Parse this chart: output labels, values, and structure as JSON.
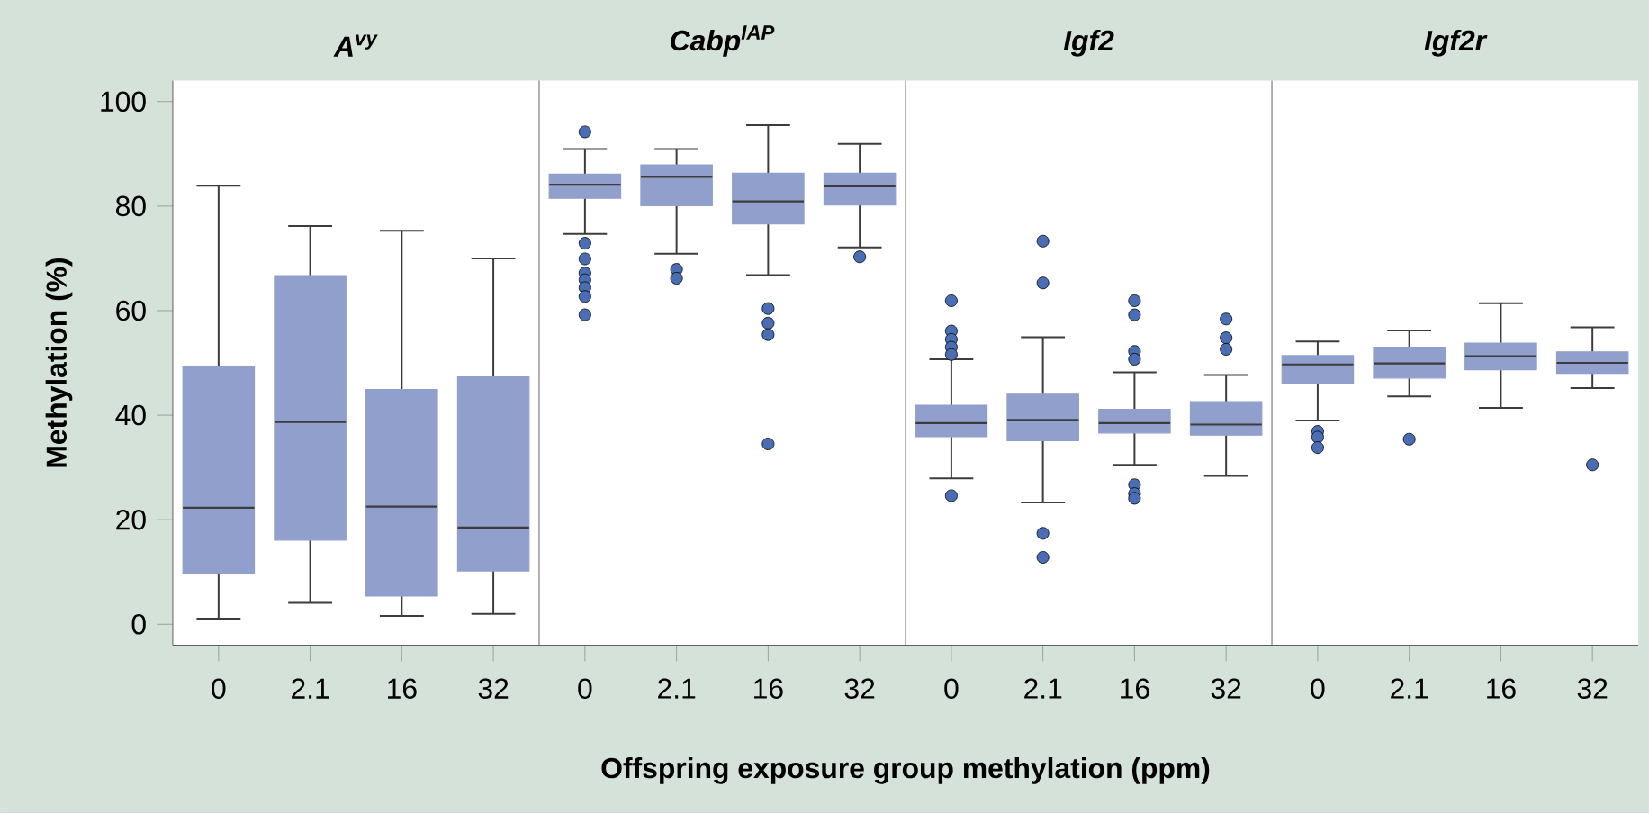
{
  "chart_data": [
    {
      "type": "box",
      "title": "A$^{vy}$",
      "categories": [
        "0",
        "2.1",
        "16",
        "32"
      ],
      "ylim": [
        -4,
        104
      ],
      "yticks": [
        0,
        20,
        40,
        60,
        80,
        100
      ],
      "ylabel": "Methylation (%)",
      "xlabel": "Offspring exposure group methylation (ppm)",
      "series": [
        {
          "color": "#909fcc",
          "boxes": [
            {
              "low": 1.1,
              "q1": 9.7,
              "median": 22.3,
              "q3": 49.4,
              "high": 83.9
            },
            {
              "low": 4.1,
              "q1": 16.1,
              "median": 38.7,
              "q3": 66.7,
              "high": 76.2
            },
            {
              "low": 1.6,
              "q1": 5.4,
              "median": 22.5,
              "q3": 44.9,
              "high": 75.3
            },
            {
              "low": 2.0,
              "q1": 10.2,
              "median": 18.5,
              "q3": 47.3,
              "high": 70.0
            }
          ]
        }
      ]
    },
    {
      "type": "box",
      "title": "Cabp$^{IAP}$",
      "categories": [
        "0",
        "2.1",
        "16",
        "32"
      ],
      "ylim": [
        -4,
        104
      ],
      "tick_labels": "x",
      "series": [
        {
          "color": "#909fcc",
          "boxes": [
            {
              "low": 74.7,
              "q1": 81.5,
              "median": 84.1,
              "q3": 86.1,
              "high": 90.9,
              "outliers": [
                94.2,
                72.9,
                69.9,
                67.2,
                65.9,
                64.4,
                62.7,
                59.2
              ]
            },
            {
              "low": 70.9,
              "q1": 80.1,
              "median": 85.6,
              "q3": 87.9,
              "high": 90.9,
              "outliers": [
                67.9,
                66.2
              ]
            },
            {
              "low": 66.8,
              "q1": 76.6,
              "median": 80.9,
              "q3": 86.3,
              "high": 95.5,
              "outliers": [
                60.4,
                57.6,
                55.4,
                34.5
              ]
            },
            {
              "low": 72.1,
              "q1": 80.2,
              "median": 83.8,
              "q3": 86.3,
              "high": 91.9,
              "outliers": [
                70.3
              ]
            }
          ]
        }
      ]
    },
    {
      "type": "box",
      "title": "Igf2",
      "categories": [
        "0",
        "2.1",
        "16",
        "32"
      ],
      "ylim": [
        -4,
        104
      ],
      "tick_labels": "x",
      "series": [
        {
          "color": "#909fcc",
          "boxes": [
            {
              "low": 27.9,
              "q1": 35.9,
              "median": 38.5,
              "q3": 41.9,
              "high": 50.7,
              "outliers": [
                61.9,
                56.1,
                54.5,
                53.0,
                51.6,
                24.6
              ]
            },
            {
              "low": 23.3,
              "q1": 35.1,
              "median": 39.1,
              "q3": 44.0,
              "high": 54.9,
              "outliers": [
                73.3,
                65.3,
                17.4,
                12.8
              ]
            },
            {
              "low": 30.5,
              "q1": 36.6,
              "median": 38.5,
              "q3": 41.1,
              "high": 48.2,
              "outliers": [
                61.9,
                59.2,
                52.2,
                50.7,
                26.7,
                25.0,
                24.1
              ]
            },
            {
              "low": 28.4,
              "q1": 36.2,
              "median": 38.2,
              "q3": 42.6,
              "high": 47.7,
              "outliers": [
                58.4,
                54.8,
                52.6
              ]
            }
          ]
        }
      ]
    },
    {
      "type": "box",
      "title": "Igf2r",
      "categories": [
        "0",
        "2.1",
        "16",
        "32"
      ],
      "ylim": [
        -4,
        104
      ],
      "tick_labels": "x",
      "series": [
        {
          "color": "#909fcc",
          "boxes": [
            {
              "low": 39.0,
              "q1": 46.1,
              "median": 49.7,
              "q3": 51.4,
              "high": 54.1,
              "outliers": [
                36.9,
                35.8,
                33.8
              ]
            },
            {
              "low": 43.6,
              "q1": 47.1,
              "median": 49.9,
              "q3": 53.0,
              "high": 56.2,
              "outliers": [
                35.4
              ]
            },
            {
              "low": 41.4,
              "q1": 48.7,
              "median": 51.3,
              "q3": 53.8,
              "high": 61.4
            },
            {
              "low": 45.2,
              "q1": 48.0,
              "median": 50.0,
              "q3": 52.1,
              "high": 56.8,
              "outliers": [
                30.5
              ]
            }
          ]
        }
      ]
    }
  ]
}
